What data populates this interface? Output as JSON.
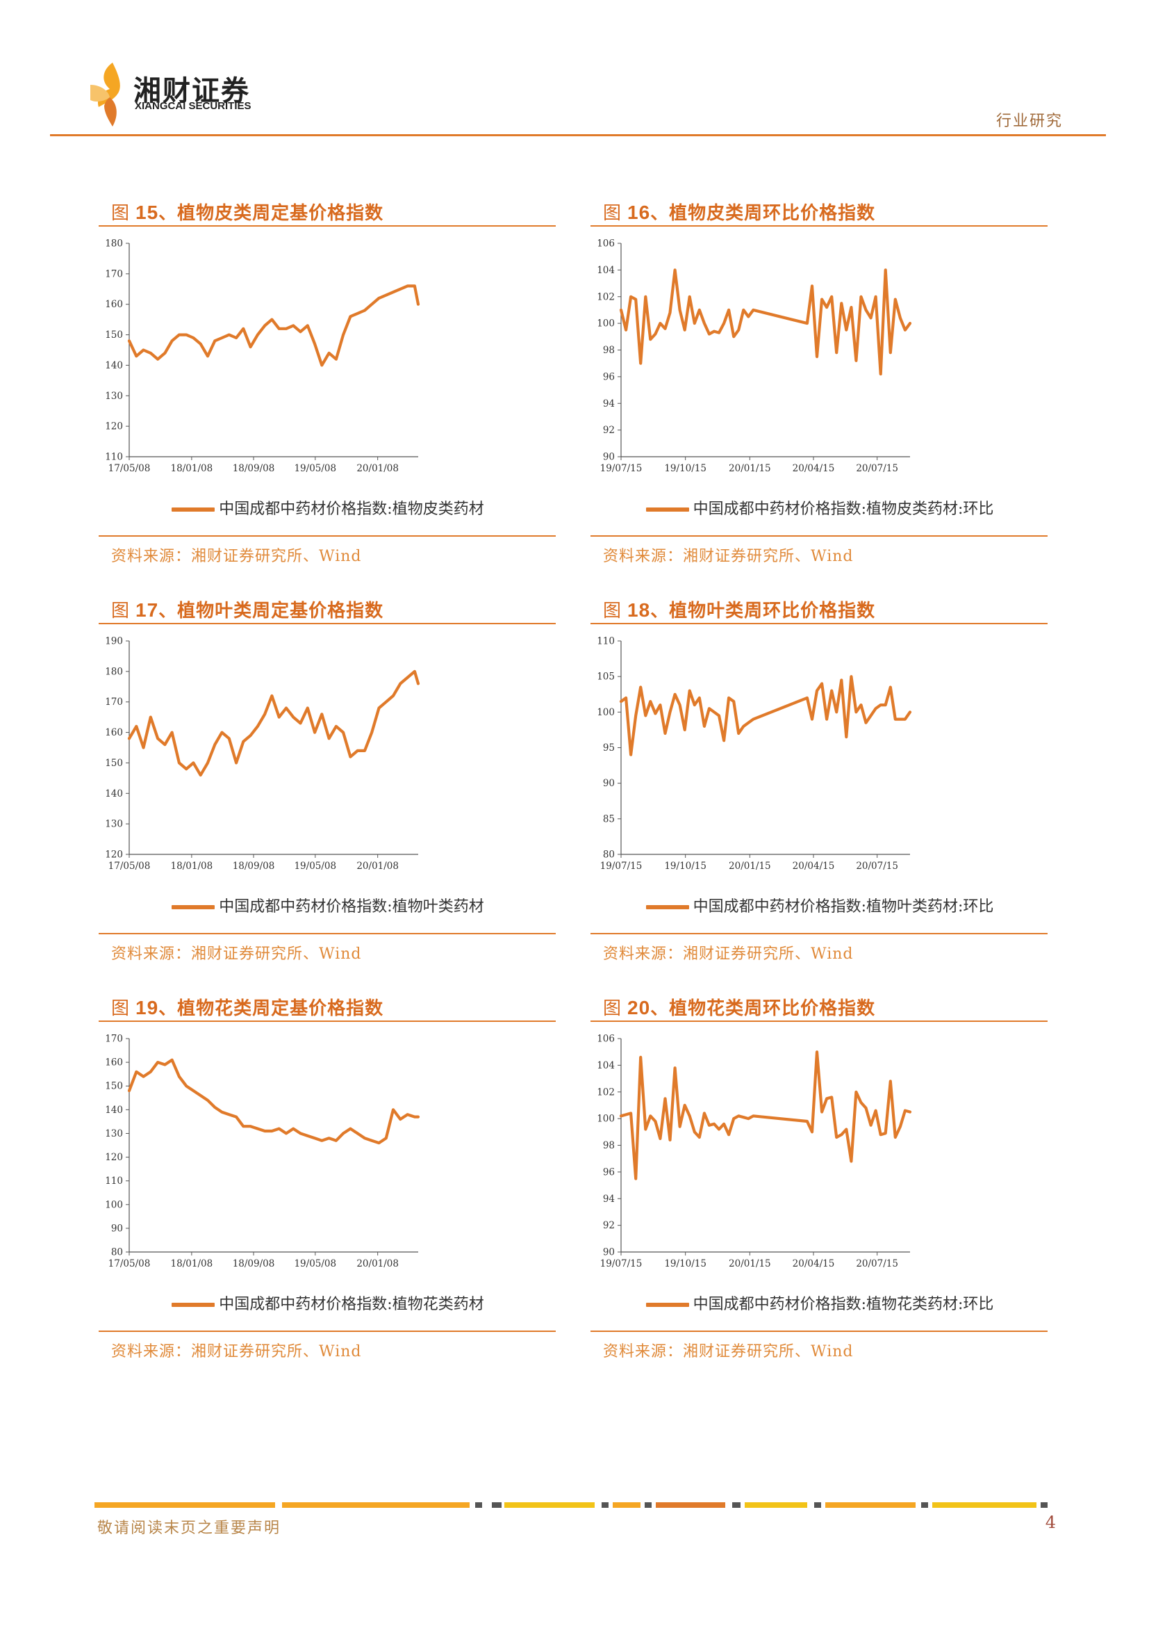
{
  "header": {
    "logo_cn": "湘财证券",
    "logo_en": "XIANGCAI SECURITIES",
    "section": "行业研究",
    "brand_colors": [
      "#f5a623",
      "#e07a2a"
    ]
  },
  "figures": [
    {
      "prefix": "图",
      "number": "15",
      "title": "、植物皮类周定基价格指数",
      "legend": "中国成都中药材价格指数:植物皮类药材",
      "source": "资料来源：湘财证券研究所、Wind"
    },
    {
      "prefix": "图",
      "number": "16",
      "title": "、植物皮类周环比价格指数",
      "legend": "中国成都中药材价格指数:植物皮类药材:环比",
      "source": "资料来源：湘财证券研究所、Wind"
    },
    {
      "prefix": "图",
      "number": "17",
      "title": "、植物叶类周定基价格指数",
      "legend": "中国成都中药材价格指数:植物叶类药材",
      "source": "资料来源：湘财证券研究所、Wind"
    },
    {
      "prefix": "图",
      "number": "18",
      "title": "、植物叶类周环比价格指数",
      "legend": "中国成都中药材价格指数:植物叶类药材:环比",
      "source": "资料来源：湘财证券研究所、Wind"
    },
    {
      "prefix": "图",
      "number": "19",
      "title": "、植物花类周定基价格指数",
      "legend": "中国成都中药材价格指数:植物花类药材",
      "source": "资料来源：湘财证券研究所、Wind"
    },
    {
      "prefix": "图",
      "number": "20",
      "title": "、植物花类周环比价格指数",
      "legend": "中国成都中药材价格指数:植物花类药材:环比",
      "source": "资料来源：湘财证券研究所、Wind"
    }
  ],
  "chart_data": [
    {
      "type": "line",
      "color": "#e07a2a",
      "grid": false,
      "title": "图 15、植物皮类周定基价格指数",
      "xlabel": "",
      "ylabel": "",
      "ylim": [
        110,
        180
      ],
      "yticks": [
        110,
        120,
        130,
        140,
        150,
        160,
        170,
        180
      ],
      "xlim": [
        "2017-05-08",
        "2020-06-15"
      ],
      "xticks": [
        "17/05/08",
        "18/01/08",
        "18/09/08",
        "19/05/08",
        "20/01/08"
      ],
      "series": [
        {
          "name": "中国成都中药材价格指数:植物皮类药材",
          "x": [
            "2017-05-08",
            "2017-06-05",
            "2017-07-03",
            "2017-07-31",
            "2017-08-28",
            "2017-09-25",
            "2017-10-23",
            "2017-11-20",
            "2017-12-18",
            "2018-01-15",
            "2018-02-12",
            "2018-03-12",
            "2018-04-09",
            "2018-05-07",
            "2018-06-04",
            "2018-07-02",
            "2018-07-30",
            "2018-08-27",
            "2018-09-24",
            "2018-10-22",
            "2018-11-19",
            "2018-12-17",
            "2019-01-14",
            "2019-02-11",
            "2019-03-11",
            "2019-04-08",
            "2019-05-06",
            "2019-06-03",
            "2019-07-01",
            "2019-07-29",
            "2019-08-26",
            "2019-09-23",
            "2019-10-21",
            "2019-11-18",
            "2019-12-16",
            "2020-01-13",
            "2020-02-10",
            "2020-03-09",
            "2020-04-06",
            "2020-05-04",
            "2020-06-01",
            "2020-06-15"
          ],
          "values": [
            148,
            143,
            145,
            144,
            142,
            144,
            148,
            150,
            150,
            149,
            147,
            143,
            148,
            149,
            150,
            149,
            152,
            146,
            150,
            153,
            155,
            152,
            152,
            153,
            151,
            153,
            147,
            140,
            144,
            142,
            150,
            156,
            157,
            158,
            160,
            162,
            163,
            164,
            165,
            166,
            166,
            160
          ]
        }
      ]
    },
    {
      "type": "line",
      "color": "#e07a2a",
      "grid": false,
      "title": "图 16、植物皮类周环比价格指数",
      "xlabel": "",
      "ylabel": "",
      "ylim": [
        90,
        106
      ],
      "yticks": [
        90,
        92,
        94,
        96,
        98,
        100,
        102,
        104,
        106
      ],
      "xlim": [
        "2019-07-15",
        "2020-08-31"
      ],
      "xticks": [
        "19/07/15",
        "19/10/15",
        "20/01/15",
        "20/04/15",
        "20/07/15"
      ],
      "series": [
        {
          "name": "中国成都中药材价格指数:植物皮类药材:环比",
          "x": [
            "2019-07-15",
            "2019-07-22",
            "2019-07-29",
            "2019-08-05",
            "2019-08-12",
            "2019-08-19",
            "2019-08-26",
            "2019-09-02",
            "2019-09-09",
            "2019-09-16",
            "2019-09-23",
            "2019-09-30",
            "2019-10-07",
            "2019-10-14",
            "2019-10-21",
            "2019-10-28",
            "2019-11-04",
            "2019-11-11",
            "2019-11-18",
            "2019-11-25",
            "2019-12-02",
            "2019-12-09",
            "2019-12-16",
            "2019-12-23",
            "2019-12-30",
            "2020-01-06",
            "2020-01-13",
            "2020-01-20",
            "2020-04-06",
            "2020-04-13",
            "2020-04-20",
            "2020-04-27",
            "2020-05-04",
            "2020-05-11",
            "2020-05-18",
            "2020-05-25",
            "2020-06-01",
            "2020-06-08",
            "2020-06-15",
            "2020-06-22",
            "2020-06-29",
            "2020-07-06",
            "2020-07-13",
            "2020-07-20",
            "2020-07-27",
            "2020-08-03",
            "2020-08-10",
            "2020-08-17",
            "2020-08-24",
            "2020-08-31"
          ],
          "values": [
            101,
            99.5,
            102,
            101.8,
            97,
            102,
            98.8,
            99.2,
            100,
            99.6,
            100.8,
            104,
            101,
            99.5,
            102,
            100,
            101,
            100,
            99.2,
            99.4,
            99.3,
            100,
            101,
            99,
            99.5,
            101,
            100.5,
            101,
            100,
            102.8,
            97.5,
            101.8,
            101.2,
            102,
            97.8,
            101.5,
            99.5,
            101.2,
            97.2,
            102,
            101,
            100.4,
            102,
            96.2,
            104,
            97.8,
            101.8,
            100.4,
            99.5,
            100
          ]
        }
      ]
    },
    {
      "type": "line",
      "color": "#e07a2a",
      "grid": false,
      "title": "图 17、植物叶类周定基价格指数",
      "xlabel": "",
      "ylabel": "",
      "ylim": [
        120,
        190
      ],
      "yticks": [
        120,
        130,
        140,
        150,
        160,
        170,
        180,
        190
      ],
      "xlim": [
        "2017-05-08",
        "2020-06-15"
      ],
      "xticks": [
        "17/05/08",
        "18/01/08",
        "18/09/08",
        "19/05/08",
        "20/01/08"
      ],
      "series": [
        {
          "name": "中国成都中药材价格指数:植物叶类药材",
          "x": [
            "2017-05-08",
            "2017-06-05",
            "2017-07-03",
            "2017-07-31",
            "2017-08-28",
            "2017-09-25",
            "2017-10-23",
            "2017-11-20",
            "2017-12-18",
            "2018-01-15",
            "2018-02-12",
            "2018-03-12",
            "2018-04-09",
            "2018-05-07",
            "2018-06-04",
            "2018-07-02",
            "2018-07-30",
            "2018-08-27",
            "2018-09-24",
            "2018-10-22",
            "2018-11-19",
            "2018-12-17",
            "2019-01-14",
            "2019-02-11",
            "2019-03-11",
            "2019-04-08",
            "2019-05-06",
            "2019-06-03",
            "2019-07-01",
            "2019-07-29",
            "2019-08-26",
            "2019-09-23",
            "2019-10-21",
            "2019-11-18",
            "2019-12-16",
            "2020-01-13",
            "2020-02-10",
            "2020-03-09",
            "2020-04-06",
            "2020-05-04",
            "2020-06-01",
            "2020-06-15"
          ],
          "values": [
            158,
            162,
            155,
            165,
            158,
            156,
            160,
            150,
            148,
            150,
            146,
            150,
            156,
            160,
            158,
            150,
            157,
            159,
            162,
            166,
            172,
            165,
            168,
            165,
            163,
            168,
            160,
            166,
            158,
            162,
            160,
            152,
            154,
            154,
            160,
            168,
            170,
            172,
            176,
            178,
            180,
            176
          ]
        }
      ]
    },
    {
      "type": "line",
      "color": "#e07a2a",
      "grid": false,
      "title": "图 18、植物叶类周环比价格指数",
      "xlabel": "",
      "ylabel": "",
      "ylim": [
        80,
        110
      ],
      "yticks": [
        80,
        85,
        90,
        95,
        100,
        105,
        110
      ],
      "xlim": [
        "2019-07-15",
        "2020-08-31"
      ],
      "xticks": [
        "19/07/15",
        "19/10/15",
        "20/01/15",
        "20/04/15",
        "20/07/15"
      ],
      "series": [
        {
          "name": "中国成都中药材价格指数:植物叶类药材:环比",
          "x": [
            "2019-07-15",
            "2019-07-22",
            "2019-07-29",
            "2019-08-05",
            "2019-08-12",
            "2019-08-19",
            "2019-08-26",
            "2019-09-02",
            "2019-09-09",
            "2019-09-16",
            "2019-09-23",
            "2019-09-30",
            "2019-10-07",
            "2019-10-14",
            "2019-10-21",
            "2019-10-28",
            "2019-11-04",
            "2019-11-11",
            "2019-11-18",
            "2019-11-25",
            "2019-12-02",
            "2019-12-09",
            "2019-12-16",
            "2019-12-23",
            "2019-12-30",
            "2020-01-06",
            "2020-01-13",
            "2020-01-20",
            "2020-04-06",
            "2020-04-13",
            "2020-04-20",
            "2020-04-27",
            "2020-05-04",
            "2020-05-11",
            "2020-05-18",
            "2020-05-25",
            "2020-06-01",
            "2020-06-08",
            "2020-06-15",
            "2020-06-22",
            "2020-06-29",
            "2020-07-06",
            "2020-07-13",
            "2020-07-20",
            "2020-07-27",
            "2020-08-03",
            "2020-08-10",
            "2020-08-17",
            "2020-08-24",
            "2020-08-31"
          ],
          "values": [
            101.5,
            102,
            94,
            99.5,
            103.5,
            99.5,
            101.5,
            99.8,
            101,
            97,
            100,
            102.5,
            101,
            97.5,
            103,
            101,
            102,
            98,
            100.5,
            100,
            99.5,
            96,
            102,
            101.5,
            97,
            98,
            98.5,
            99,
            102,
            99,
            103,
            104,
            99,
            103,
            100,
            104.5,
            96.5,
            105,
            100,
            101,
            98.5,
            99.5,
            100.5,
            101,
            101,
            103.5,
            99,
            99,
            99,
            100
          ]
        }
      ]
    },
    {
      "type": "line",
      "color": "#e07a2a",
      "grid": false,
      "title": "图 19、植物花类周定基价格指数",
      "xlabel": "",
      "ylabel": "",
      "ylim": [
        80,
        170
      ],
      "yticks": [
        80,
        90,
        100,
        110,
        120,
        130,
        140,
        150,
        160,
        170
      ],
      "xlim": [
        "2017-05-08",
        "2020-06-15"
      ],
      "xticks": [
        "17/05/08",
        "18/01/08",
        "18/09/08",
        "19/05/08",
        "20/01/08"
      ],
      "series": [
        {
          "name": "中国成都中药材价格指数:植物花类药材",
          "x": [
            "2017-05-08",
            "2017-06-05",
            "2017-07-03",
            "2017-07-31",
            "2017-08-28",
            "2017-09-25",
            "2017-10-23",
            "2017-11-20",
            "2017-12-18",
            "2018-01-15",
            "2018-02-12",
            "2018-03-12",
            "2018-04-09",
            "2018-05-07",
            "2018-06-04",
            "2018-07-02",
            "2018-07-30",
            "2018-08-27",
            "2018-09-24",
            "2018-10-22",
            "2018-11-19",
            "2018-12-17",
            "2019-01-14",
            "2019-02-11",
            "2019-03-11",
            "2019-04-08",
            "2019-05-06",
            "2019-06-03",
            "2019-07-01",
            "2019-07-29",
            "2019-08-26",
            "2019-09-23",
            "2019-10-21",
            "2019-11-18",
            "2019-12-16",
            "2020-01-13",
            "2020-02-10",
            "2020-03-09",
            "2020-04-06",
            "2020-05-04",
            "2020-06-01",
            "2020-06-15"
          ],
          "values": [
            148,
            156,
            154,
            156,
            160,
            159,
            161,
            154,
            150,
            148,
            146,
            144,
            141,
            139,
            138,
            137,
            133,
            133,
            132,
            131,
            131,
            132,
            130,
            132,
            130,
            129,
            128,
            127,
            128,
            127,
            130,
            132,
            130,
            128,
            127,
            126,
            128,
            140,
            136,
            138,
            137,
            137
          ]
        }
      ]
    },
    {
      "type": "line",
      "color": "#e07a2a",
      "grid": false,
      "title": "图 20、植物花类周环比价格指数",
      "xlabel": "",
      "ylabel": "",
      "ylim": [
        90,
        106
      ],
      "yticks": [
        90,
        92,
        94,
        96,
        98,
        100,
        102,
        104,
        106
      ],
      "xlim": [
        "2019-07-15",
        "2020-08-31"
      ],
      "xticks": [
        "19/07/15",
        "19/10/15",
        "20/01/15",
        "20/04/15",
        "20/07/15"
      ],
      "series": [
        {
          "name": "中国成都中药材价格指数:植物花类药材:环比",
          "x": [
            "2019-07-15",
            "2019-07-22",
            "2019-07-29",
            "2019-08-05",
            "2019-08-12",
            "2019-08-19",
            "2019-08-26",
            "2019-09-02",
            "2019-09-09",
            "2019-09-16",
            "2019-09-23",
            "2019-09-30",
            "2019-10-07",
            "2019-10-14",
            "2019-10-21",
            "2019-10-28",
            "2019-11-04",
            "2019-11-11",
            "2019-11-18",
            "2019-11-25",
            "2019-12-02",
            "2019-12-09",
            "2019-12-16",
            "2019-12-23",
            "2019-12-30",
            "2020-01-06",
            "2020-01-13",
            "2020-01-20",
            "2020-04-06",
            "2020-04-13",
            "2020-04-20",
            "2020-04-27",
            "2020-05-04",
            "2020-05-11",
            "2020-05-18",
            "2020-05-25",
            "2020-06-01",
            "2020-06-08",
            "2020-06-15",
            "2020-06-22",
            "2020-06-29",
            "2020-07-06",
            "2020-07-13",
            "2020-07-20",
            "2020-07-27",
            "2020-08-03",
            "2020-08-10",
            "2020-08-17",
            "2020-08-24",
            "2020-08-31"
          ],
          "values": [
            100.2,
            100.3,
            100.4,
            95.5,
            104.6,
            99.2,
            100.2,
            99.8,
            98.5,
            101.5,
            98.4,
            103.8,
            99.4,
            101,
            100.2,
            99,
            98.6,
            100.4,
            99.5,
            99.6,
            99.2,
            99.6,
            98.8,
            100,
            100.2,
            100.1,
            100,
            100.2,
            99.8,
            99,
            105,
            100.5,
            101.5,
            101.6,
            98.6,
            98.8,
            99.2,
            96.8,
            102,
            101.2,
            100.8,
            99.5,
            100.6,
            98.8,
            98.9,
            102.8,
            98.6,
            99.4,
            100.6,
            100.5
          ]
        }
      ]
    }
  ],
  "footer": {
    "disclaimer": "敬请阅读末页之重要声明",
    "page": "4"
  }
}
